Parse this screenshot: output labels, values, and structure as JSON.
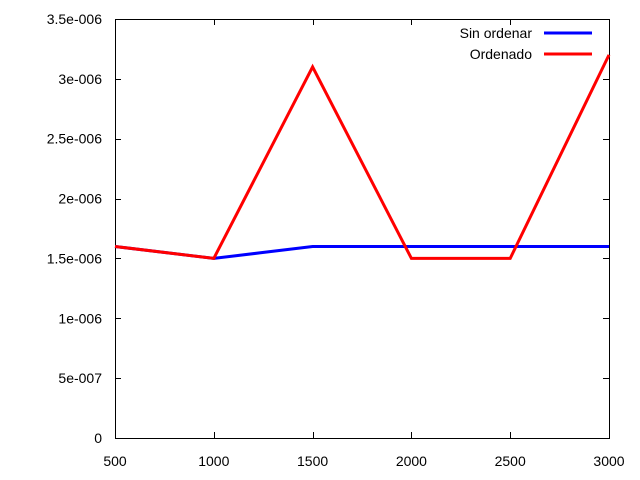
{
  "chart_data": {
    "type": "line",
    "x": [
      500,
      1000,
      1500,
      2000,
      2500,
      3000
    ],
    "series": [
      {
        "name": "Sin ordenar",
        "color": "#0000ff",
        "values": [
          1.6e-06,
          1.5e-06,
          1.6e-06,
          1.6e-06,
          1.6e-06,
          1.6e-06
        ]
      },
      {
        "name": "Ordenado",
        "color": "#ff0000",
        "values": [
          1.6e-06,
          1.5e-06,
          3.1e-06,
          1.5e-06,
          1.5e-06,
          3.2e-06
        ]
      }
    ],
    "xlim": [
      500,
      3000
    ],
    "ylim": [
      0,
      3.5e-06
    ],
    "x_ticks": [
      "500",
      "1000",
      "1500",
      "2000",
      "2500",
      "3000"
    ],
    "y_ticks": [
      "0",
      "5e-007",
      "1e-006",
      "1.5e-006",
      "2e-006",
      "2.5e-006",
      "3e-006",
      "3.5e-006"
    ],
    "grid": false,
    "legend_position": "top-right"
  }
}
